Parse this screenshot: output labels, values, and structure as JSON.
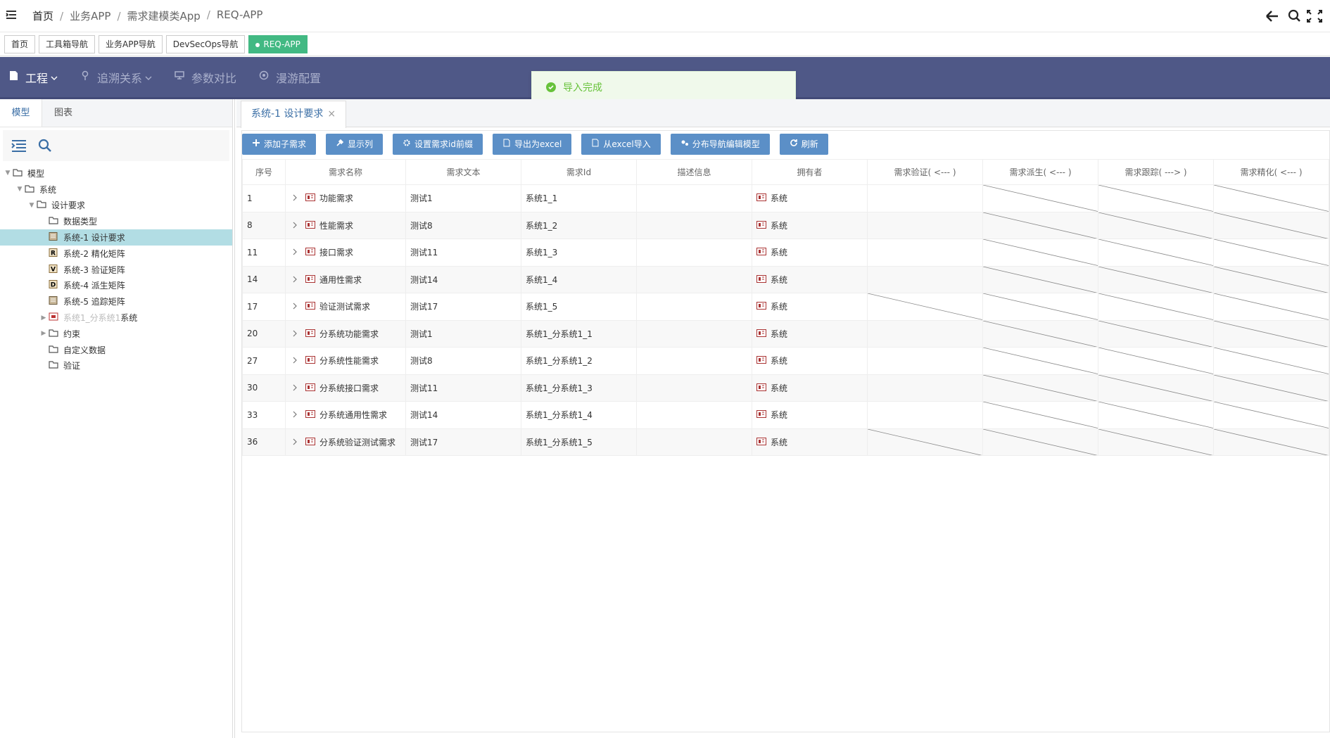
{
  "breadcrumb": [
    "首页",
    "业务APP",
    "需求建模类App",
    "REQ-APP"
  ],
  "tags": [
    "首页",
    "工具箱导航",
    "业务APP导航",
    "DevSecOps导航",
    "REQ-APP"
  ],
  "nav": [
    "工程",
    "追溯关系",
    "参数对比",
    "漫游配置"
  ],
  "toast": "导入完成",
  "left_tabs": [
    "模型",
    "图表"
  ],
  "tree": {
    "label": "模型",
    "children": [
      {
        "label": "系统",
        "children": [
          {
            "label": "设计要求",
            "children": [
              {
                "label": "数据类型",
                "folder": true
              },
              {
                "label": "系统-1 设计要求"
              },
              {
                "label": "系统-2 精化矩阵",
                "badge": "R"
              },
              {
                "label": "系统-3 验证矩阵",
                "badge": "V"
              },
              {
                "label": "系统-4 派生矩阵",
                "badge": "D"
              },
              {
                "label": "系统-5 追踪矩阵"
              },
              {
                "label": "系统1_分系统1",
                "suffix": "系统"
              },
              {
                "label": "约束",
                "folder": true
              },
              {
                "label": "自定义数据",
                "folder": true
              },
              {
                "label": "验证",
                "folder": true
              }
            ]
          }
        ]
      }
    ]
  },
  "doc_tab": "系统-1 设计要求",
  "buttons": [
    "添加子需求",
    "显示列",
    "设置需求id前缀",
    "导出为excel",
    "从excel导入",
    "分布导航编辑模型",
    "刷新"
  ],
  "table": {
    "headers": [
      "序号",
      "需求名称",
      "需求文本",
      "需求Id",
      "描述信息",
      "拥有者",
      "需求验证( <--- )",
      "需求派生( <--- )",
      "需求跟踪( ---> )",
      "需求精化( <--- )"
    ],
    "rows": [
      {
        "no": "1",
        "name": "功能需求",
        "text": "测试1",
        "id": "系统1_1",
        "owner": "系统"
      },
      {
        "no": "8",
        "name": "性能需求",
        "text": "测试8",
        "id": "系统1_2",
        "owner": "系统"
      },
      {
        "no": "11",
        "name": "接口需求",
        "text": "测试11",
        "id": "系统1_3",
        "owner": "系统"
      },
      {
        "no": "14",
        "name": "通用性需求",
        "text": "测试14",
        "id": "系统1_4",
        "owner": "系统"
      },
      {
        "no": "17",
        "name": "验证测试需求",
        "text": "测试17",
        "id": "系统1_5",
        "owner": "系统"
      },
      {
        "no": "20",
        "name": "分系统功能需求",
        "text": "测试1",
        "id": "系统1_分系统1_1",
        "owner": "系统"
      },
      {
        "no": "27",
        "name": "分系统性能需求",
        "text": "测试8",
        "id": "系统1_分系统1_2",
        "owner": "系统"
      },
      {
        "no": "30",
        "name": "分系统接口需求",
        "text": "测试11",
        "id": "系统1_分系统1_3",
        "owner": "系统"
      },
      {
        "no": "33",
        "name": "分系统通用性需求",
        "text": "测试14",
        "id": "系统1_分系统1_4",
        "owner": "系统"
      },
      {
        "no": "36",
        "name": "分系统验证测试需求",
        "text": "测试17",
        "id": "系统1_分系统1_5",
        "owner": "系统"
      }
    ]
  }
}
